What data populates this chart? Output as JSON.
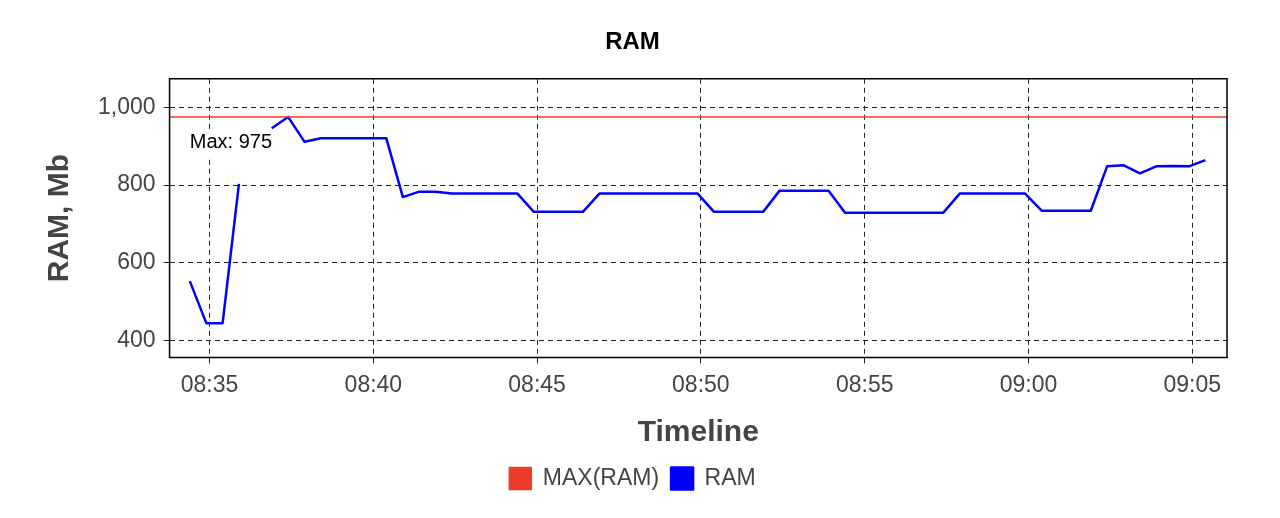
{
  "chart_data": {
    "type": "line",
    "title": "RAM",
    "xlabel": "Timeline",
    "ylabel": "RAM, Mb",
    "xlim": [
      8.563,
      9.101
    ],
    "ylim": [
      357,
      1073
    ],
    "xticks": [
      {
        "value": 8.5833,
        "label": "08:35"
      },
      {
        "value": 8.6667,
        "label": "08:40"
      },
      {
        "value": 8.75,
        "label": "08:45"
      },
      {
        "value": 8.8333,
        "label": "08:50"
      },
      {
        "value": 8.9167,
        "label": "08:55"
      },
      {
        "value": 9.0,
        "label": "09:00"
      },
      {
        "value": 9.0833,
        "label": "09:05"
      }
    ],
    "yticks": [
      400,
      600,
      800,
      {
        "value": 1000,
        "label": "1,000"
      }
    ],
    "grid": true,
    "legend": "bottom",
    "marker": "none",
    "line_style": "solid",
    "annotations": [
      {
        "text": "Max: 975",
        "x": 8.6233,
        "y": 975
      }
    ],
    "series": [
      {
        "name": "MAX(RAM)",
        "color": "#ee3b2b",
        "x": [
          8.563,
          9.101
        ],
        "values": [
          975,
          975
        ]
      },
      {
        "name": "RAM",
        "color": "#0000ff",
        "x": [
          8.5733,
          8.5817,
          8.59,
          8.5983,
          8.6067,
          8.615,
          8.6233,
          8.6317,
          8.64,
          8.6483,
          8.6567,
          8.665,
          8.6733,
          8.6817,
          8.69,
          8.6983,
          8.7067,
          8.715,
          8.7233,
          8.7317,
          8.74,
          8.7483,
          8.7567,
          8.765,
          8.7733,
          8.7817,
          8.79,
          8.7983,
          8.8067,
          8.815,
          8.8233,
          8.8317,
          8.84,
          8.8483,
          8.8567,
          8.865,
          8.8733,
          8.8817,
          8.89,
          8.8983,
          8.9067,
          8.915,
          8.9233,
          8.9317,
          8.94,
          8.9483,
          8.9567,
          8.965,
          8.9733,
          8.9817,
          8.99,
          8.9983,
          9.0067,
          9.015,
          9.0233,
          9.0317,
          9.04,
          9.0483,
          9.0567,
          9.065,
          9.0733,
          9.0817,
          9.09
        ],
        "values": [
          553,
          445,
          445,
          803,
          null,
          946,
          975,
          911,
          920,
          920,
          920,
          920,
          920,
          769,
          783,
          783,
          778,
          778,
          778,
          778,
          778,
          731,
          731,
          731,
          731,
          778,
          778,
          778,
          778,
          778,
          778,
          778,
          731,
          731,
          731,
          731,
          785,
          785,
          785,
          785,
          729,
          729,
          729,
          729,
          729,
          729,
          729,
          778,
          778,
          778,
          778,
          778,
          734,
          734,
          734,
          734,
          848,
          851,
          830,
          848,
          849,
          848,
          864
        ]
      }
    ]
  }
}
